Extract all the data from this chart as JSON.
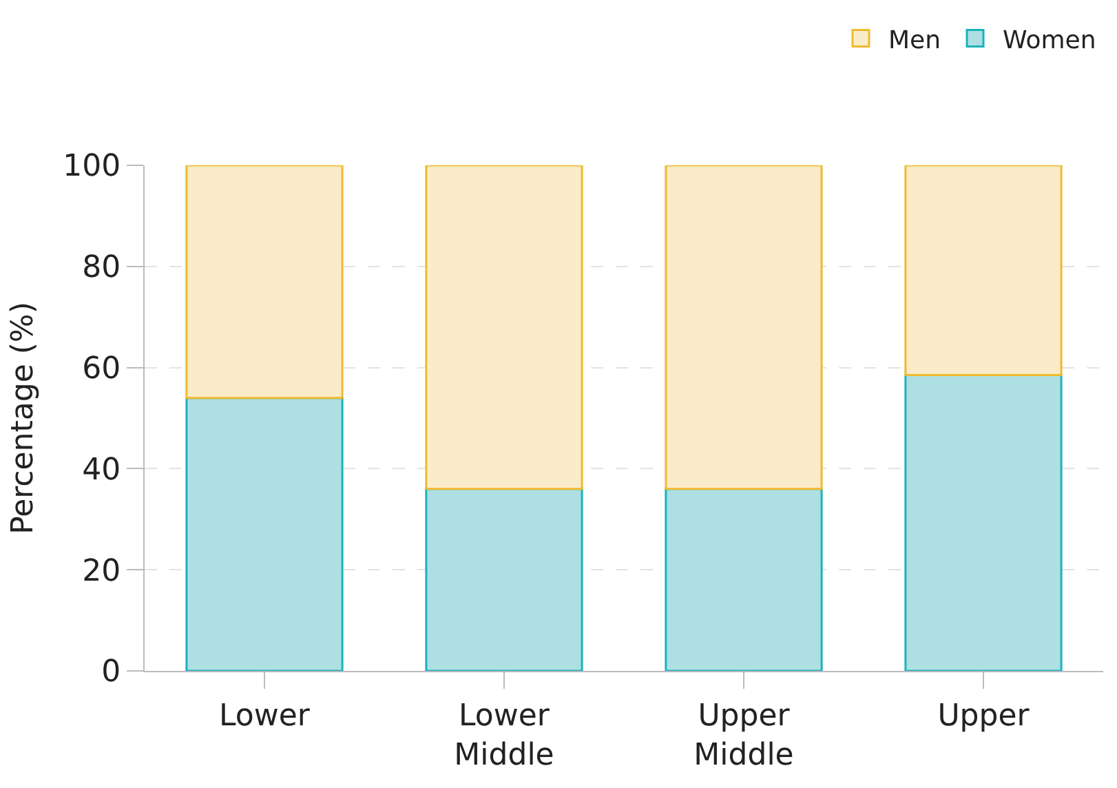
{
  "chart_data": {
    "type": "bar",
    "stacked": true,
    "ylabel": "Percentage (%)",
    "categories": [
      "Lower",
      "Lower\nMiddle",
      "Upper\nMiddle",
      "Upper"
    ],
    "series": [
      {
        "name": "Women",
        "color": "#aedfe2",
        "values": [
          54,
          36,
          36,
          58.5
        ]
      },
      {
        "name": "Men",
        "color": "#faecc8",
        "values": [
          46,
          64,
          64,
          41.5
        ]
      }
    ],
    "ylim": [
      0,
      100
    ],
    "yticks": [
      0,
      20,
      40,
      60,
      80,
      100
    ],
    "grid": "y",
    "legend": "top right"
  }
}
